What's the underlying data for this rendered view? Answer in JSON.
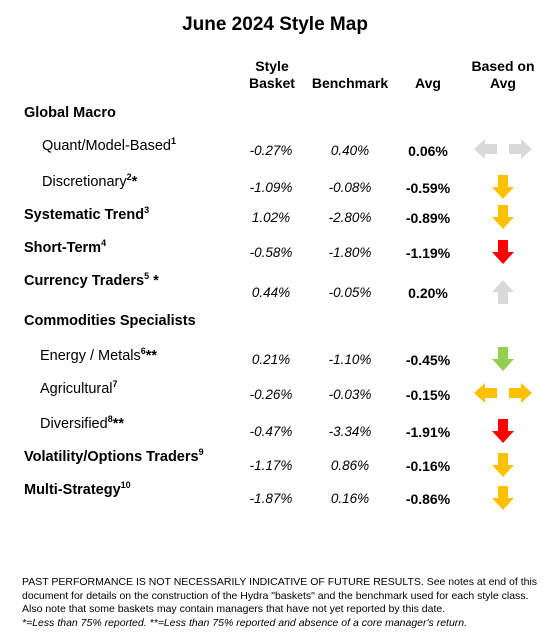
{
  "title": "June 2024 Style Map",
  "headers": {
    "basket_l1": "Style",
    "basket_l2": "Basket",
    "benchmark": "Benchmark",
    "avg": "Avg",
    "based_l1": "Based on",
    "based_l2": "Avg"
  },
  "sections": {
    "global_macro": "Global Macro",
    "commodities": "Commodities Specialists"
  },
  "rows": [
    {
      "label": "Quant/Model-Based",
      "sup": "1",
      "mark": "",
      "basket": "-0.27%",
      "benchmark": "0.40%",
      "avg": "0.06%",
      "arrow": "left-right",
      "color": "#d9d9d9"
    },
    {
      "label": "Discretionary",
      "sup": "2",
      "mark": "*",
      "basket": "-1.09%",
      "benchmark": "-0.08%",
      "avg": "-0.59%",
      "arrow": "down",
      "color": "#ffc000"
    },
    {
      "label": "Systematic Trend",
      "sup": "3",
      "mark": "",
      "basket": "1.02%",
      "benchmark": "-2.80%",
      "avg": "-0.89%",
      "arrow": "down",
      "color": "#ffc000"
    },
    {
      "label": "Short-Term",
      "sup": "4",
      "mark": "",
      "basket": "-0.58%",
      "benchmark": "-1.80%",
      "avg": "-1.19%",
      "arrow": "down",
      "color": "#ff0000"
    },
    {
      "label": "Currency Traders",
      "sup": "5",
      "mark": " *",
      "basket": "0.44%",
      "benchmark": "-0.05%",
      "avg": "0.20%",
      "arrow": "up",
      "color": "#d9d9d9"
    },
    {
      "label": "Energy / Metals",
      "sup": "6",
      "mark": "**",
      "basket": "0.21%",
      "benchmark": "-1.10%",
      "avg": "-0.45%",
      "arrow": "down",
      "color": "#92d050"
    },
    {
      "label": "Agricultural",
      "sup": "7",
      "mark": "",
      "basket": "-0.26%",
      "benchmark": "-0.03%",
      "avg": "-0.15%",
      "arrow": "left-right",
      "color": "#ffc000"
    },
    {
      "label": "Diversified",
      "sup": "8",
      "mark": "**",
      "basket": "-0.47%",
      "benchmark": "-3.34%",
      "avg": "-1.91%",
      "arrow": "down",
      "color": "#ff0000"
    },
    {
      "label": "Volatility/Options Traders",
      "sup": "9",
      "mark": "",
      "basket": "-1.17%",
      "benchmark": "0.86%",
      "avg": "-0.16%",
      "arrow": "down",
      "color": "#ffc000"
    },
    {
      "label": "Multi-Strategy",
      "sup": "10",
      "mark": "",
      "basket": "-1.87%",
      "benchmark": "0.16%",
      "avg": "-0.86%",
      "arrow": "down",
      "color": "#ffc000"
    }
  ],
  "footnote": {
    "text": "PAST PERFORMANCE IS NOT NECESSARILY INDICATIVE OF FUTURE RESULTS.  See notes at end of this document for details on the construction of the Hydra \"baskets\" and the benchmark used for each style class.  Also note that some baskets may contain managers that have not yet reported by this date.",
    "italic": "*=Less than 75% reported. **=Less than 75% reported and absence of a core manager's return."
  }
}
